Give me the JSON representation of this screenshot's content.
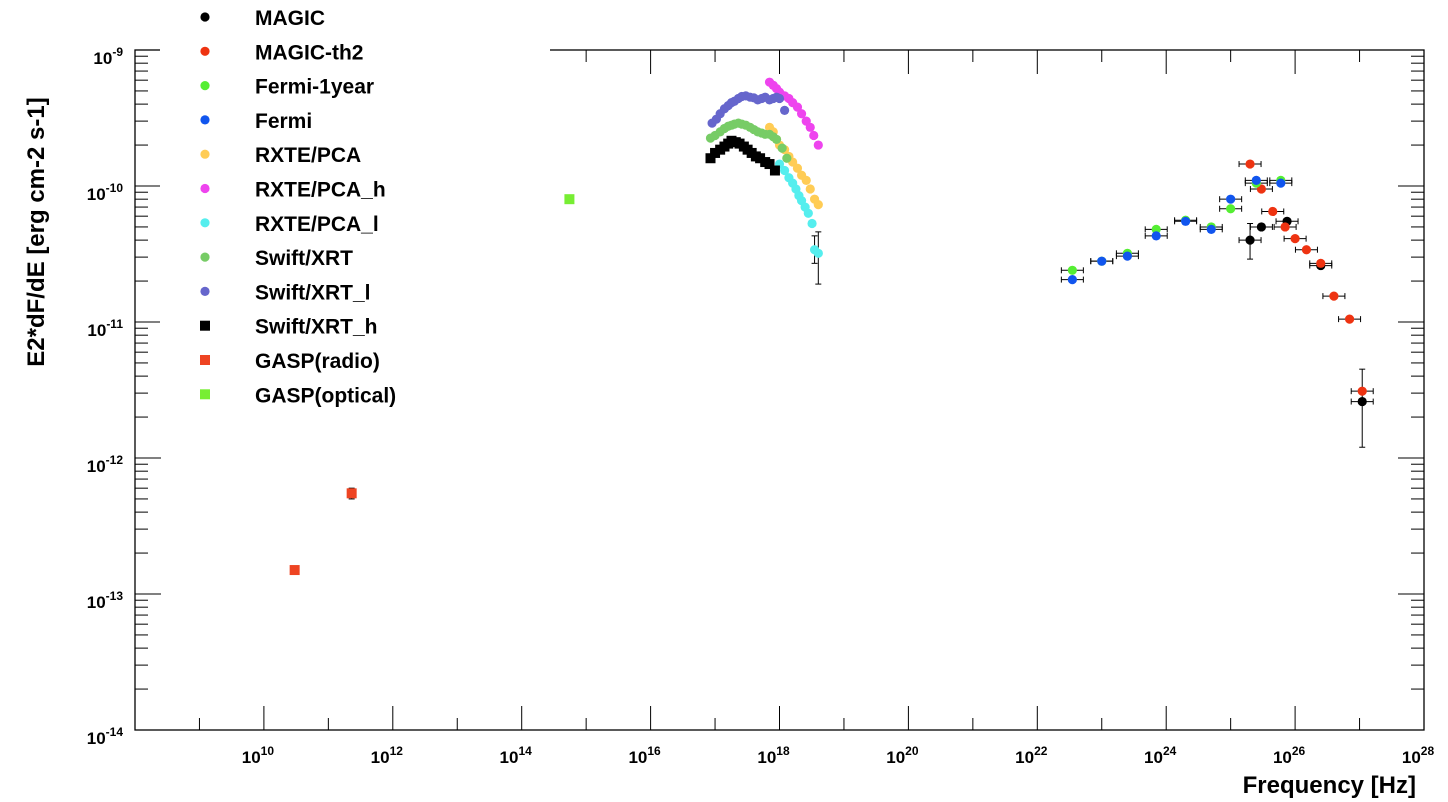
{
  "chart_data": {
    "type": "scatter",
    "title": "",
    "xlabel": "Frequency [Hz]",
    "ylabel": "E2*dF/dE [erg cm-2 s-1]",
    "xscale": "log",
    "yscale": "log",
    "xlim": [
      100000000.0,
      1e+28
    ],
    "ylim": [
      1e-14,
      1e-09
    ],
    "grid": false,
    "legend_position": "top-left",
    "x_tick_labels": [
      {
        "value": 10000000000.0,
        "base": "10",
        "exp": "10"
      },
      {
        "value": 1000000000000.0,
        "base": "10",
        "exp": "12"
      },
      {
        "value": 100000000000000.0,
        "base": "10",
        "exp": "14"
      },
      {
        "value": 1e+16,
        "base": "10",
        "exp": "16"
      },
      {
        "value": 1e+18,
        "base": "10",
        "exp": "18"
      },
      {
        "value": 1e+20,
        "base": "10",
        "exp": "20"
      },
      {
        "value": 1e+22,
        "base": "10",
        "exp": "22"
      },
      {
        "value": 1e+24,
        "base": "10",
        "exp": "24"
      },
      {
        "value": 1e+26,
        "base": "10",
        "exp": "26"
      },
      {
        "value": 1e+28,
        "base": "10",
        "exp": "28"
      }
    ],
    "y_tick_labels": [
      {
        "value": 1e-14,
        "base": "10",
        "exp": "-14"
      },
      {
        "value": 1e-13,
        "base": "10",
        "exp": "-13"
      },
      {
        "value": 1e-12,
        "base": "10",
        "exp": "-12"
      },
      {
        "value": 1e-11,
        "base": "10",
        "exp": "-11"
      },
      {
        "value": 1e-10,
        "base": "10",
        "exp": "-10"
      },
      {
        "value": 1e-09,
        "base": "10",
        "exp": "-9"
      }
    ],
    "series": [
      {
        "name": "MAGIC",
        "color": "#000000",
        "marker": "circle",
        "points": [
          [
            2e+25,
            4e-11
          ],
          [
            3e+25,
            5e-11
          ],
          [
            7.5e+25,
            5.5e-11
          ],
          [
            2.5e+26,
            2.6e-11
          ],
          [
            1.1e+27,
            2.6e-12
          ]
        ],
        "yerr": [
          [
            2e+25,
            2.9e-11,
            5.3e-11
          ],
          [
            1.1e+27,
            1.2e-12,
            4.5e-12
          ]
        ]
      },
      {
        "name": "MAGIC-th2",
        "color": "#ee3311",
        "marker": "circle",
        "points": [
          [
            2e+25,
            1.45e-10
          ],
          [
            3e+25,
            9.5e-11
          ],
          [
            4.5e+25,
            6.5e-11
          ],
          [
            7e+25,
            5e-11
          ],
          [
            1e+26,
            4.1e-11
          ],
          [
            1.5e+26,
            3.4e-11
          ],
          [
            2.5e+26,
            2.7e-11
          ],
          [
            4e+26,
            1.55e-11
          ],
          [
            7e+26,
            1.05e-11
          ],
          [
            1.1e+27,
            3.1e-12
          ]
        ]
      },
      {
        "name": "Fermi-1year",
        "color": "#55ee33",
        "marker": "circle",
        "points": [
          [
            3.5e+22,
            2.4e-11
          ],
          [
            1e+23,
            2.8e-11
          ],
          [
            2.5e+23,
            3.2e-11
          ],
          [
            7e+23,
            4.8e-11
          ],
          [
            2e+24,
            5.6e-11
          ],
          [
            5e+24,
            5e-11
          ],
          [
            1e+25,
            6.8e-11
          ],
          [
            2.5e+25,
            1.05e-10
          ],
          [
            6e+25,
            1.1e-10
          ]
        ]
      },
      {
        "name": "Fermi",
        "color": "#1155ee",
        "marker": "circle",
        "points": [
          [
            3.5e+22,
            2.05e-11
          ],
          [
            1e+23,
            2.8e-11
          ],
          [
            2.5e+23,
            3.05e-11
          ],
          [
            7e+23,
            4.3e-11
          ],
          [
            2e+24,
            5.5e-11
          ],
          [
            5e+24,
            4.8e-11
          ],
          [
            1e+25,
            8e-11
          ],
          [
            2.5e+25,
            1.1e-10
          ],
          [
            6e+25,
            1.05e-10
          ]
        ]
      },
      {
        "name": "RXTE/PCA",
        "color": "#ffcc55",
        "marker": "circle",
        "points": [
          [
            7e+17,
            2.7e-10
          ],
          [
            8e+17,
            2.5e-10
          ],
          [
            9e+17,
            2.2e-10
          ],
          [
            1e+18,
            2e-10
          ],
          [
            1.2e+18,
            1.85e-10
          ],
          [
            1.4e+18,
            1.65e-10
          ],
          [
            1.6e+18,
            1.5e-10
          ],
          [
            1.9e+18,
            1.35e-10
          ],
          [
            2.2e+18,
            1.2e-10
          ],
          [
            2.6e+18,
            1.1e-10
          ],
          [
            3e+18,
            9.5e-11
          ],
          [
            3.5e+18,
            8e-11
          ],
          [
            4e+18,
            7.3e-11
          ]
        ]
      },
      {
        "name": "RXTE/PCA_h",
        "color": "#ee44ee",
        "marker": "circle",
        "points": [
          [
            7e+17,
            5.8e-10
          ],
          [
            8e+17,
            5.5e-10
          ],
          [
            9e+17,
            5.2e-10
          ],
          [
            1e+18,
            4.9e-10
          ],
          [
            1.2e+18,
            4.6e-10
          ],
          [
            1.4e+18,
            4.4e-10
          ],
          [
            1.6e+18,
            4.1e-10
          ],
          [
            1.9e+18,
            3.8e-10
          ],
          [
            2.2e+18,
            3.4e-10
          ],
          [
            2.6e+18,
            3e-10
          ],
          [
            3e+18,
            2.7e-10
          ],
          [
            3.4e+18,
            2.35e-10
          ],
          [
            4e+18,
            2e-10
          ]
        ]
      },
      {
        "name": "RXTE/PCA_l",
        "color": "#55eeee",
        "marker": "circle",
        "points": [
          [
            1e+18,
            1.45e-10
          ],
          [
            1.2e+18,
            1.3e-10
          ],
          [
            1.4e+18,
            1.15e-10
          ],
          [
            1.6e+18,
            1.05e-10
          ],
          [
            1.8e+18,
            9.5e-11
          ],
          [
            2e+18,
            8.5e-11
          ],
          [
            2.2e+18,
            7.8e-11
          ],
          [
            2.5e+18,
            7e-11
          ],
          [
            2.8e+18,
            6.3e-11
          ],
          [
            3.2e+18,
            5.3e-11
          ],
          [
            3.5e+18,
            3.4e-11
          ],
          [
            4e+18,
            3.2e-11
          ]
        ],
        "yerr": [
          [
            3.5e+18,
            2.7e-11,
            4.3e-11
          ],
          [
            4e+18,
            1.9e-11,
            4.6e-11
          ]
        ]
      },
      {
        "name": "Swift/XRT",
        "color": "#77cc66",
        "marker": "circle",
        "points": [
          [
            8.5e+16,
            2.25e-10
          ],
          [
            1e+17,
            2.35e-10
          ],
          [
            1.2e+17,
            2.5e-10
          ],
          [
            1.4e+17,
            2.65e-10
          ],
          [
            1.6e+17,
            2.75e-10
          ],
          [
            1.8e+17,
            2.8e-10
          ],
          [
            2e+17,
            2.85e-10
          ],
          [
            2.3e+17,
            2.9e-10
          ],
          [
            2.6e+17,
            2.85e-10
          ],
          [
            3e+17,
            2.8e-10
          ],
          [
            3.5e+17,
            2.7e-10
          ],
          [
            4e+17,
            2.6e-10
          ],
          [
            4.6e+17,
            2.5e-10
          ],
          [
            5.3e+17,
            2.45e-10
          ],
          [
            6e+17,
            2.4e-10
          ],
          [
            7e+17,
            2.4e-10
          ],
          [
            8e+17,
            2.3e-10
          ],
          [
            9e+17,
            2.2e-10
          ],
          [
            1.1e+18,
            1.9e-10
          ],
          [
            1.3e+18,
            1.6e-10
          ]
        ]
      },
      {
        "name": "Swift/XRT_l",
        "color": "#6666cc",
        "marker": "circle",
        "points": [
          [
            9e+16,
            2.9e-10
          ],
          [
            1.05e+17,
            3.1e-10
          ],
          [
            1.2e+17,
            3.4e-10
          ],
          [
            1.4e+17,
            3.7e-10
          ],
          [
            1.6e+17,
            3.9e-10
          ],
          [
            1.8e+17,
            4.1e-10
          ],
          [
            2e+17,
            4.2e-10
          ],
          [
            2.3e+17,
            4.4e-10
          ],
          [
            2.6e+17,
            4.55e-10
          ],
          [
            3e+17,
            4.6e-10
          ],
          [
            3.5e+17,
            4.5e-10
          ],
          [
            4e+17,
            4.45e-10
          ],
          [
            4.6e+17,
            4.3e-10
          ],
          [
            5.3e+17,
            4.4e-10
          ],
          [
            6e+17,
            4.5e-10
          ],
          [
            7e+17,
            4.3e-10
          ],
          [
            8e+17,
            4.4e-10
          ],
          [
            9e+17,
            4.5e-10
          ],
          [
            1e+18,
            4.4e-10
          ],
          [
            1.2e+18,
            3.6e-10
          ]
        ]
      },
      {
        "name": "Swift/XRT_h",
        "color": "#000000",
        "marker": "square",
        "points": [
          [
            8.5e+16,
            1.6e-10
          ],
          [
            1e+17,
            1.75e-10
          ],
          [
            1.2e+17,
            1.85e-10
          ],
          [
            1.4e+17,
            1.95e-10
          ],
          [
            1.6e+17,
            2.05e-10
          ],
          [
            1.8e+17,
            2.15e-10
          ],
          [
            2.1e+17,
            2.1e-10
          ],
          [
            2.4e+17,
            2.05e-10
          ],
          [
            2.8e+17,
            1.95e-10
          ],
          [
            3.2e+17,
            1.85e-10
          ],
          [
            3.7e+17,
            1.75e-10
          ],
          [
            4.3e+17,
            1.65e-10
          ],
          [
            5e+17,
            1.6e-10
          ],
          [
            6e+17,
            1.5e-10
          ],
          [
            7e+17,
            1.45e-10
          ],
          [
            8.5e+17,
            1.3e-10
          ]
        ]
      },
      {
        "name": "GASP(radio)",
        "color": "#ee4422",
        "marker": "square",
        "points": [
          [
            30000000000.0,
            1.5e-13
          ],
          [
            230000000000.0,
            5.5e-13
          ]
        ],
        "yerr": [
          [
            230000000000.0,
            5e-13,
            6e-13
          ]
        ]
      },
      {
        "name": "GASP(optical)",
        "color": "#77ee33",
        "marker": "square",
        "points": [
          [
            550000000000000.0,
            8e-11
          ]
        ]
      }
    ]
  }
}
